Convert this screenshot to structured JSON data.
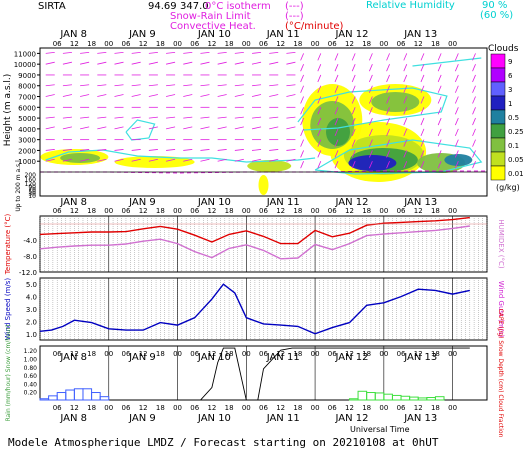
{
  "header": {
    "station": "SIRTA",
    "coords": "94.69",
    "coords_suffix": "347.0",
    "legend_left": [
      {
        "label": "0°C isotherm",
        "sample": "(---)",
        "color": "#e020e0"
      },
      {
        "label": "Snow-Rain Limit",
        "sample": "(---)",
        "color": "#e020e0"
      },
      {
        "label": "Convective Heat.",
        "sample": "(°C/minute)",
        "color": "#e00000"
      }
    ],
    "legend_right": [
      {
        "label": "Relative Humidity",
        "value": "90 %",
        "color": "#00e0e0"
      },
      {
        "label": "",
        "value": "(60 %)",
        "color": "#00e0e0"
      }
    ]
  },
  "footer": {
    "title": "Modele Atmospherique LMDZ / Forecast starting on 20210108 at 0hUT",
    "xlabel": "Universal Time"
  },
  "time_axis": {
    "days": [
      "JAN 8",
      "JAN 9",
      "JAN 10",
      "JAN 11",
      "JAN 12",
      "JAN 13"
    ],
    "hours": [
      "06",
      "12",
      "18",
      "00"
    ]
  },
  "chart_data": [
    {
      "type": "heatmap",
      "name": "cloud-panel",
      "ylabel": "Height (m a.s.l.)",
      "ylabel2": "Up to 200 m a.s.l.",
      "yticks": [
        1000,
        2000,
        3000,
        4000,
        5000,
        6000,
        7000,
        8000,
        9000,
        10000,
        11000
      ],
      "yticks_low": [
        10,
        20,
        30,
        40,
        50,
        60,
        70,
        80,
        90,
        100,
        120,
        140,
        160,
        180,
        200
      ],
      "colorbar": {
        "title": "Clouds",
        "unit": "(g/kg)",
        "ticks": [
          "9",
          "6",
          "3",
          "1",
          "0.5",
          "0.25",
          "0.1",
          "0.05",
          "0.01"
        ],
        "colors": [
          "#ff00ff",
          "#b000ff",
          "#6060ff",
          "#2020c0",
          "#2080a0",
          "#40a040",
          "#80c040",
          "#c0e020",
          "#ffff00"
        ]
      }
    },
    {
      "type": "line",
      "name": "temperature-panel",
      "ylabel": "Temperature (°C)",
      "ylabel2": "HUMIDEX (°C)",
      "yticks": [
        "-4.0",
        "-8.0",
        "-12.0"
      ],
      "ylim": [
        -12,
        2
      ],
      "series": [
        {
          "name": "",
          "color": "#e00000",
          "x": [
            0,
            6,
            12,
            18,
            24,
            30,
            36,
            42,
            48,
            54,
            60,
            66,
            72,
            78,
            84,
            90,
            96,
            102,
            108,
            114,
            120,
            126,
            132,
            138,
            144,
            150
          ],
          "values": [
            -2.6,
            -2.4,
            -2.2,
            -2.0,
            -2.0,
            -1.9,
            -1.2,
            -0.6,
            -1.3,
            -2.8,
            -4.5,
            -2.6,
            -1.7,
            -3.1,
            -4.9,
            -4.9,
            -1.6,
            -3.2,
            -2.3,
            -0.3,
            0.2,
            0.4,
            0.6,
            0.8,
            1.1,
            1.6
          ]
        },
        {
          "name": "",
          "color": "#d070d0",
          "x": [
            0,
            6,
            12,
            18,
            24,
            30,
            36,
            42,
            48,
            54,
            60,
            66,
            72,
            78,
            84,
            90,
            96,
            102,
            108,
            114,
            120,
            126,
            132,
            138,
            144,
            150
          ],
          "values": [
            -6.2,
            -5.8,
            -5.5,
            -5.3,
            -5.3,
            -5.0,
            -4.3,
            -3.8,
            -4.9,
            -6.9,
            -8.4,
            -6.1,
            -5.2,
            -6.6,
            -8.7,
            -8.5,
            -5.1,
            -6.4,
            -4.9,
            -2.9,
            -2.5,
            -2.2,
            -1.9,
            -1.6,
            -1.1,
            -0.5
          ]
        }
      ]
    },
    {
      "type": "line",
      "name": "wind-panel",
      "ylabel": "Wind Speed (m/s)",
      "ylabel2": "Wind Gust (m/s)",
      "yticks": [
        "1.0",
        "2.0",
        "3.0",
        "4.0",
        "5.0"
      ],
      "ylim": [
        0.5,
        5.5
      ],
      "series": [
        {
          "name": "",
          "color": "#0000c0",
          "x": [
            0,
            4,
            8,
            12,
            18,
            24,
            30,
            36,
            42,
            48,
            54,
            60,
            64,
            68,
            72,
            78,
            84,
            90,
            96,
            102,
            108,
            114,
            120,
            126,
            132,
            138,
            144,
            150
          ],
          "values": [
            1.2,
            1.3,
            1.6,
            2.1,
            1.9,
            1.4,
            1.3,
            1.3,
            1.9,
            1.7,
            2.3,
            3.8,
            5.0,
            4.3,
            2.3,
            1.8,
            1.7,
            1.6,
            1.0,
            1.5,
            1.9,
            3.3,
            3.5,
            4.0,
            4.6,
            4.5,
            4.2,
            4.5
          ]
        }
      ]
    },
    {
      "type": "bar",
      "name": "precip-panel",
      "ylabel": "Rain (mm/hour) Snow (cm/hour)",
      "ylabel2": "CAPE (J/g) Snow Depth (cm) Cloud Fraction",
      "yticks": [
        "0.20",
        "0.40",
        "0.60",
        "0.80",
        "1.00",
        "1.20"
      ],
      "ylim": [
        0,
        1.3
      ],
      "series": [
        {
          "name": "",
          "color": "#4060ff",
          "x": [
            0,
            3,
            6,
            9,
            12,
            15,
            18,
            21
          ],
          "values": [
            0.03,
            0.1,
            0.18,
            0.24,
            0.27,
            0.27,
            0.18,
            0.08
          ]
        },
        {
          "name": "",
          "color": "#40e040",
          "x": [
            108,
            111,
            114,
            117,
            120,
            123,
            126,
            129,
            132,
            135,
            138
          ],
          "values": [
            0.03,
            0.21,
            0.18,
            0.17,
            0.14,
            0.11,
            0.09,
            0.07,
            0.05,
            0.06,
            0.08
          ]
        },
        {
          "name": "",
          "color": "#000000",
          "x": [
            48,
            56,
            60,
            62,
            64,
            66,
            68,
            72,
            76,
            78,
            84,
            88,
            92,
            96,
            150
          ],
          "values": [
            0.0,
            0.0,
            0.3,
            0.9,
            1.25,
            1.25,
            1.25,
            0.0,
            0.0,
            0.75,
            1.2,
            1.25,
            1.25,
            1.25,
            1.25
          ]
        }
      ]
    }
  ]
}
